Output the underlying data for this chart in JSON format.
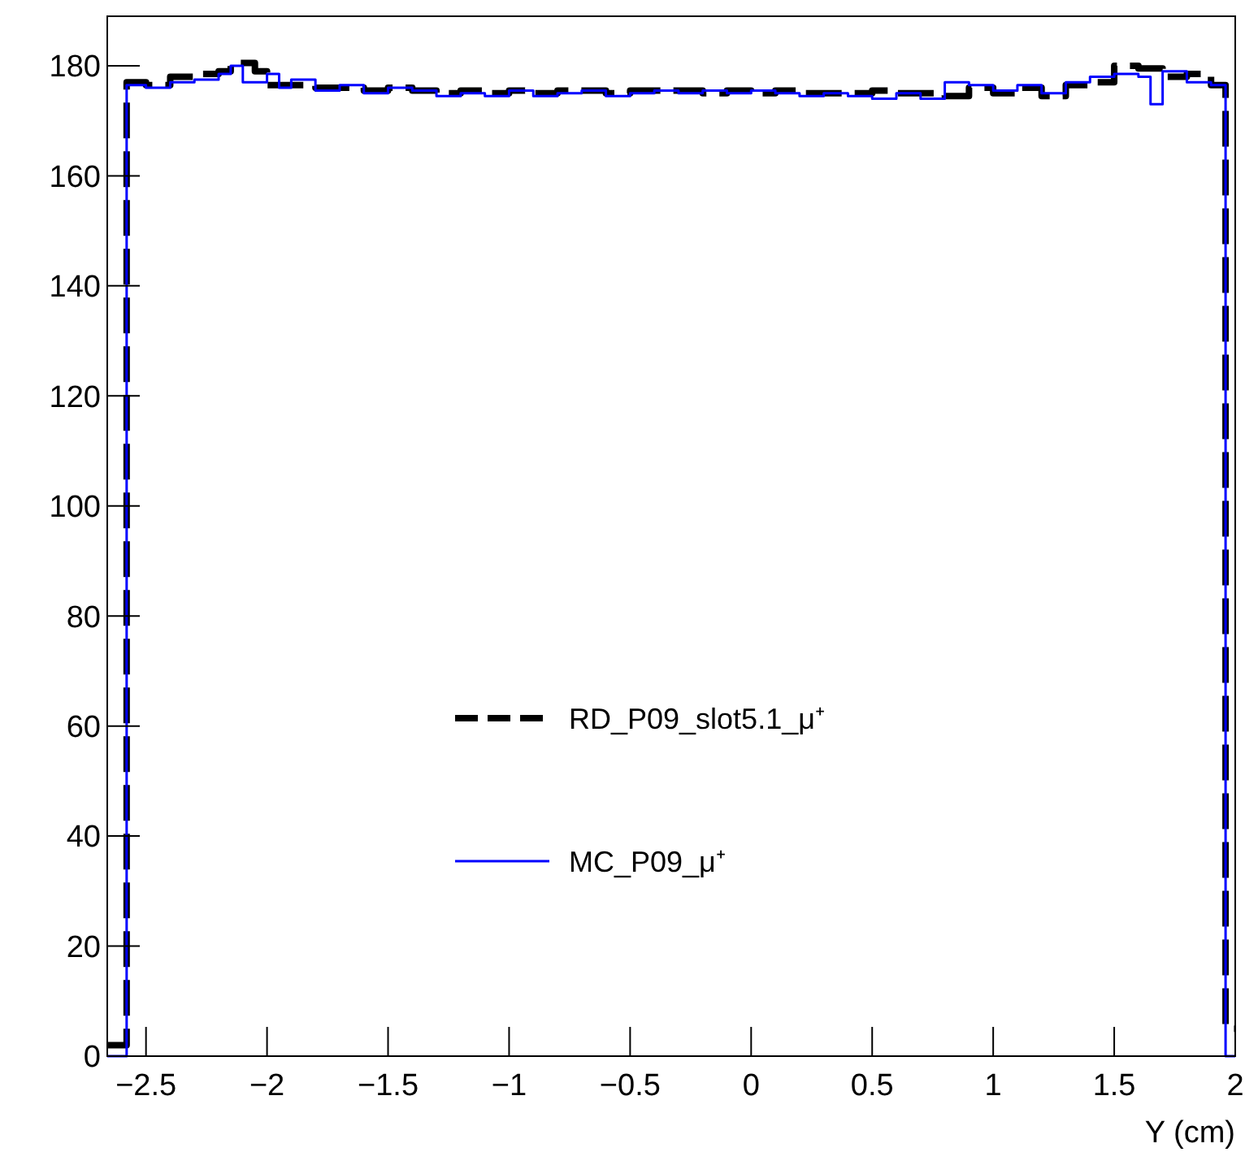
{
  "chart_data": {
    "type": "step",
    "xlabel": "Y (cm)",
    "xlim": [
      -2.66,
      2.0
    ],
    "ylim": [
      0,
      189
    ],
    "xticks": [
      {
        "value": -2.5,
        "label": "−2.5"
      },
      {
        "value": -2,
        "label": "−2"
      },
      {
        "value": -1.5,
        "label": "−1.5"
      },
      {
        "value": -1,
        "label": "−1"
      },
      {
        "value": -0.5,
        "label": "−0.5"
      },
      0,
      0.5,
      1,
      1.5,
      2
    ],
    "yticks": [
      0,
      20,
      40,
      60,
      80,
      100,
      120,
      140,
      160,
      180
    ],
    "legend": "center",
    "grid": false,
    "series": [
      {
        "name": "RD_P09_slot5.1_μ⁺",
        "color": "#000000",
        "line_style": "dashed",
        "x": [
          -2.66,
          -2.58,
          -2.5,
          -2.4,
          -2.3,
          -2.2,
          -2.15,
          -2.05,
          -2.0,
          -1.9,
          -1.8,
          -1.7,
          -1.6,
          -1.5,
          -1.4,
          -1.3,
          -1.2,
          -1.1,
          -1.0,
          -0.9,
          -0.8,
          -0.7,
          -0.6,
          -0.5,
          -0.4,
          -0.3,
          -0.2,
          -0.1,
          0.0,
          0.1,
          0.2,
          0.3,
          0.4,
          0.5,
          0.6,
          0.7,
          0.8,
          0.9,
          1.0,
          1.1,
          1.2,
          1.3,
          1.4,
          1.5,
          1.6,
          1.7,
          1.8,
          1.9,
          1.96,
          2.0
        ],
        "values": [
          2,
          177,
          176.5,
          178,
          178.5,
          179,
          180.5,
          179,
          176.5,
          176.5,
          176,
          176,
          175.5,
          176,
          175.5,
          175,
          175.5,
          175,
          175.5,
          175,
          175.5,
          175.5,
          175,
          175.5,
          175.5,
          175.5,
          175,
          175.5,
          175,
          175.5,
          175,
          175,
          175,
          175.5,
          175,
          175,
          174.5,
          176,
          175,
          176,
          174.5,
          176.5,
          177,
          180,
          179.5,
          178,
          178.5,
          176.5,
          5,
          5
        ]
      },
      {
        "name": "MC_P09_μ⁺",
        "color": "#0000ff",
        "line_style": "solid",
        "x": [
          -2.66,
          -2.58,
          -2.5,
          -2.4,
          -2.3,
          -2.2,
          -2.15,
          -2.1,
          -2.0,
          -1.95,
          -1.9,
          -1.8,
          -1.7,
          -1.6,
          -1.5,
          -1.4,
          -1.3,
          -1.2,
          -1.1,
          -1.0,
          -0.9,
          -0.8,
          -0.7,
          -0.6,
          -0.5,
          -0.4,
          -0.3,
          -0.2,
          -0.1,
          0.0,
          0.1,
          0.2,
          0.3,
          0.4,
          0.5,
          0.6,
          0.7,
          0.8,
          0.9,
          1.0,
          1.1,
          1.2,
          1.3,
          1.4,
          1.5,
          1.6,
          1.65,
          1.7,
          1.8,
          1.9,
          1.96,
          2.0
        ],
        "values": [
          0,
          176.5,
          176,
          177,
          177.5,
          178.5,
          180,
          177,
          178.5,
          176,
          177.5,
          175.5,
          176.5,
          175,
          176,
          175.5,
          174.5,
          175,
          174.5,
          175.5,
          174.5,
          175,
          175.5,
          174.5,
          175,
          175.5,
          175,
          175.5,
          175,
          175.5,
          175,
          174.5,
          175,
          174.5,
          174,
          175,
          174,
          177,
          176.5,
          175.5,
          176.5,
          175,
          177,
          178,
          178.5,
          178,
          173,
          179,
          177,
          176.5,
          0,
          0
        ]
      }
    ]
  }
}
